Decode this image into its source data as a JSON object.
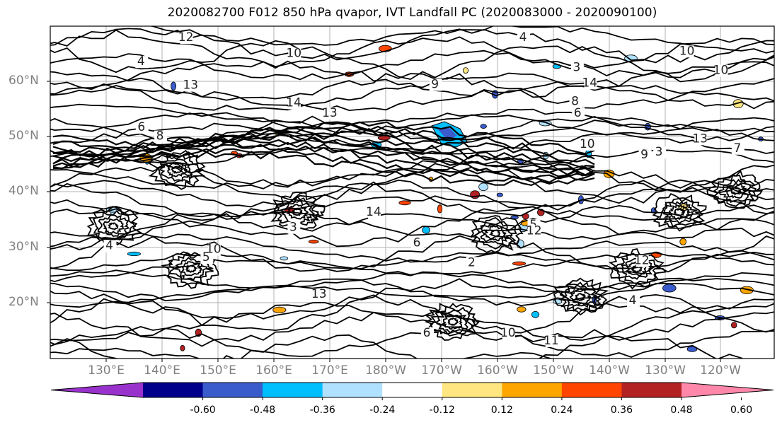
{
  "title": "2020082700 F012 850 hPa qvapor, IVT Landfall PC (2020083000 - 2020090100)",
  "lat_labels": [
    "60°N",
    "50°N",
    "40°N",
    "30°N",
    "20°N"
  ],
  "lon_labels": [
    "130°E",
    "140°E",
    "150°E",
    "160°E",
    "170°E",
    "180°W",
    "170°W",
    "160°W",
    "150°W",
    "140°W",
    "130°W",
    "120°W"
  ],
  "contour_labels": [
    "3",
    "3",
    "4",
    "5",
    "4",
    "6",
    "6",
    "6",
    "6",
    "4",
    "2",
    "3",
    "4",
    "8",
    "5",
    "8",
    "7",
    "9",
    "10",
    "14",
    "10",
    "9",
    "10",
    "11",
    "12",
    "13",
    "10",
    "10",
    "10",
    "12",
    "12",
    "13",
    "14",
    "14",
    "13",
    "13"
  ],
  "colorbar": {
    "ticks": [
      "-0.60",
      "-0.48",
      "-0.36",
      "-0.24",
      "-0.12",
      "0.12",
      "0.24",
      "0.36",
      "0.48",
      "0.60"
    ],
    "colors": [
      "#9932cc",
      "#00008b",
      "#3a5bcc",
      "#00bfff",
      "#b0e2ff",
      "#ffffff",
      "#ffe680",
      "#ffa500",
      "#ff4500",
      "#b22222",
      "#ff88aa"
    ]
  }
}
